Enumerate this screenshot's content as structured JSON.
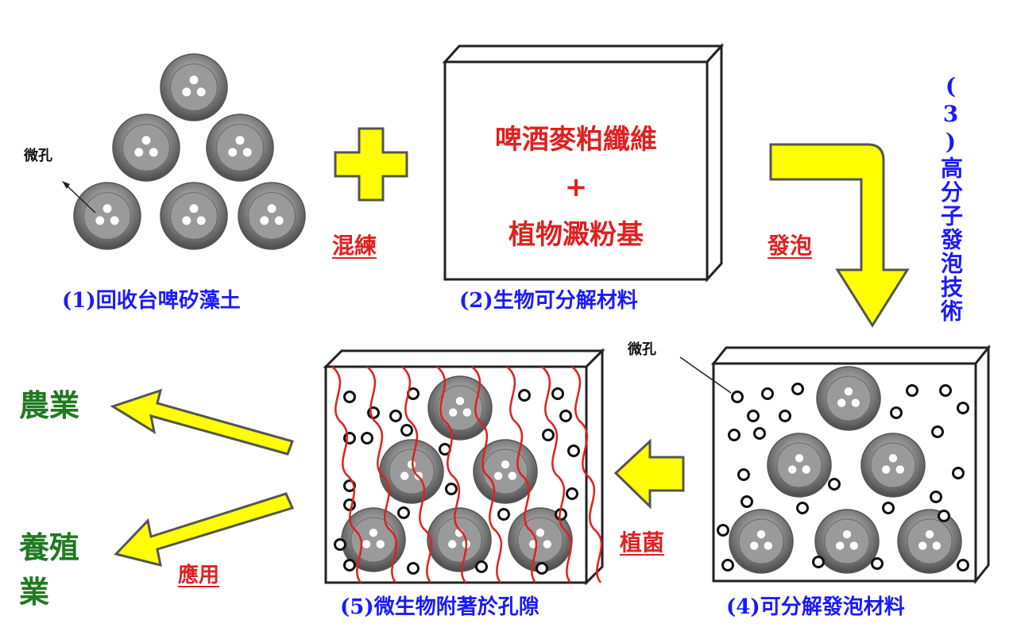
{
  "header": {
    "title_partial": ""
  },
  "step1": {
    "label": "(1)回收台啤矽藻土",
    "pore_label": "微孔"
  },
  "mix": {
    "label": "混練"
  },
  "step2": {
    "label": "(2)生物可分解材料",
    "content": {
      "line1": "啤酒麥粕纖維",
      "plus": "+",
      "line2": "植物澱粉基"
    }
  },
  "foam": {
    "label": "發泡"
  },
  "step3": {
    "label": "(3)高分子發泡技術"
  },
  "step4": {
    "label": "(4)可分解發泡材料",
    "pore_label": "微孔"
  },
  "inoculate": {
    "label": "植菌"
  },
  "step5": {
    "label": "(5)微生物附著於孔隙"
  },
  "apply": {
    "label": "應用"
  },
  "uses": [
    {
      "label": "農業"
    },
    {
      "label": "養殖業"
    }
  ],
  "colors": {
    "arrow_fill": "#ffff00",
    "arrow_stroke": "#555555",
    "step_label": "#1a1aff",
    "action_label": "#e02020",
    "use_label": "#207a20",
    "fiber": "#e02020"
  }
}
